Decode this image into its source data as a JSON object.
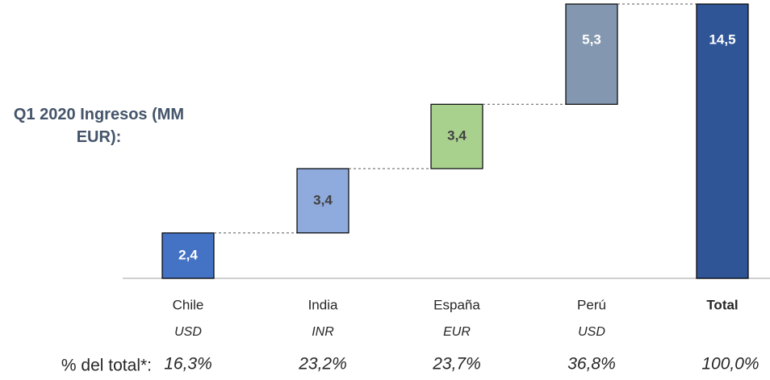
{
  "chart_data": {
    "type": "waterfall",
    "title": "Q1 2020 Ingresos (MM EUR):",
    "categories": [
      "Chile",
      "India",
      "España",
      "Perú",
      "Total"
    ],
    "values": [
      2.4,
      3.4,
      3.4,
      5.3,
      14.5
    ],
    "value_labels": [
      "2,4",
      "3,4",
      "3,4",
      "5,3",
      "14,5"
    ],
    "colors": [
      "#4472c4",
      "#8faadc",
      "#a9d18e",
      "#8497b0",
      "#2f5597"
    ],
    "label_colors": [
      "#ffffff",
      "#404040",
      "#404040",
      "#ffffff",
      "#ffffff"
    ],
    "last_is_total": true,
    "currencies": [
      "USD",
      "INR",
      "EUR",
      "USD",
      null
    ],
    "share_title": "% del total*:",
    "shares": [
      16.3,
      23.2,
      23.7,
      36.8,
      100.0
    ],
    "share_labels": [
      "16,3%",
      "23,2%",
      "23,7%",
      "36,8%",
      "100,0%"
    ]
  }
}
